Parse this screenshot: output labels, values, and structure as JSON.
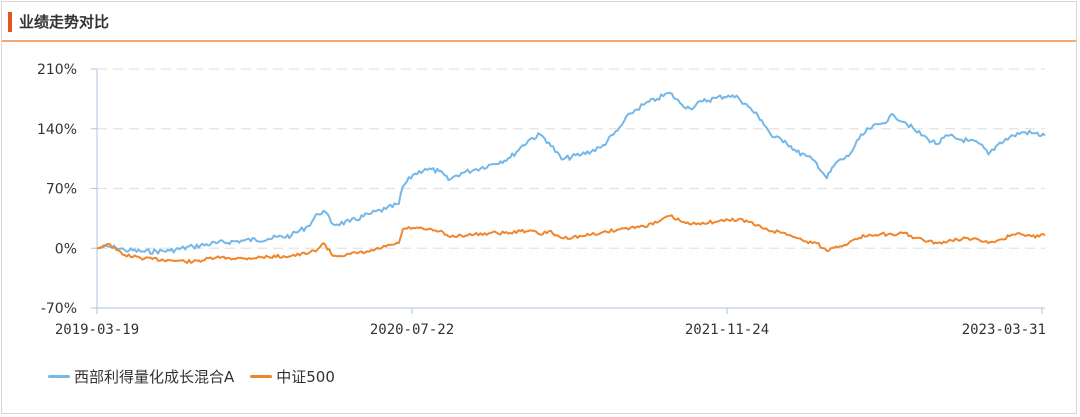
{
  "header": {
    "title": "业绩走势对比"
  },
  "colors": {
    "fund": "#75b8e8",
    "index": "#f0862c",
    "accent": "#e3551f"
  },
  "chart_data": {
    "type": "line",
    "title": "",
    "xlabel": "",
    "ylabel": "",
    "ylim": [
      -70,
      210
    ],
    "yticks": [
      -70,
      0,
      70,
      140,
      210
    ],
    "ytick_labels": [
      "-70%",
      "0%",
      "70%",
      "140%",
      "210%"
    ],
    "xticks": [
      "2019-03-19",
      "2020-07-22",
      "2021-11-24",
      "2023-03-31"
    ],
    "x_start": "2019-03-19",
    "x_end": "2023-03-31",
    "grid": true,
    "legend": "bottom-left",
    "series": [
      {
        "name": "西部利得量化成长混合A",
        "color": "#75b8e8",
        "points": [
          [
            "2019-03-19",
            0
          ],
          [
            "2019-04-05",
            2
          ],
          [
            "2019-05-01",
            -2
          ],
          [
            "2019-06-01",
            -4
          ],
          [
            "2019-07-10",
            -3
          ],
          [
            "2019-08-15",
            2
          ],
          [
            "2019-09-20",
            6
          ],
          [
            "2019-11-01",
            9
          ],
          [
            "2019-12-10",
            11
          ],
          [
            "2020-01-15",
            15
          ],
          [
            "2020-02-10",
            26
          ],
          [
            "2020-02-25",
            40
          ],
          [
            "2020-03-05",
            44
          ],
          [
            "2020-03-20",
            28
          ],
          [
            "2020-04-15",
            31
          ],
          [
            "2020-05-15",
            40
          ],
          [
            "2020-06-10",
            46
          ],
          [
            "2020-06-30",
            52
          ],
          [
            "2020-07-06",
            72
          ],
          [
            "2020-07-22",
            86
          ],
          [
            "2020-08-10",
            93
          ],
          [
            "2020-09-01",
            90
          ],
          [
            "2020-09-15",
            80
          ],
          [
            "2020-10-05",
            88
          ],
          [
            "2020-10-25",
            92
          ],
          [
            "2020-11-20",
            98
          ],
          [
            "2020-12-20",
            106
          ],
          [
            "2021-01-05",
            118
          ],
          [
            "2021-01-20",
            128
          ],
          [
            "2021-02-05",
            133
          ],
          [
            "2021-02-18",
            124
          ],
          [
            "2021-03-10",
            104
          ],
          [
            "2021-04-10",
            110
          ],
          [
            "2021-05-10",
            118
          ],
          [
            "2021-06-05",
            138
          ],
          [
            "2021-06-25",
            158
          ],
          [
            "2021-07-15",
            168
          ],
          [
            "2021-08-05",
            175
          ],
          [
            "2021-08-25",
            182
          ],
          [
            "2021-09-10",
            170
          ],
          [
            "2021-09-25",
            164
          ],
          [
            "2021-10-15",
            172
          ],
          [
            "2021-11-05",
            176
          ],
          [
            "2021-11-24",
            179
          ],
          [
            "2021-12-10",
            176
          ],
          [
            "2021-12-25",
            166
          ],
          [
            "2022-01-15",
            150
          ],
          [
            "2022-02-01",
            130
          ],
          [
            "2022-02-20",
            126
          ],
          [
            "2022-03-10",
            113
          ],
          [
            "2022-03-25",
            108
          ],
          [
            "2022-04-10",
            100
          ],
          [
            "2022-04-26",
            82
          ],
          [
            "2022-05-10",
            100
          ],
          [
            "2022-05-30",
            108
          ],
          [
            "2022-06-15",
            128
          ],
          [
            "2022-07-01",
            140
          ],
          [
            "2022-07-20",
            146
          ],
          [
            "2022-08-08",
            156
          ],
          [
            "2022-08-25",
            148
          ],
          [
            "2022-09-10",
            138
          ],
          [
            "2022-09-30",
            128
          ],
          [
            "2022-10-15",
            122
          ],
          [
            "2022-10-31",
            132
          ],
          [
            "2022-11-15",
            128
          ],
          [
            "2022-12-01",
            126
          ],
          [
            "2022-12-20",
            122
          ],
          [
            "2023-01-02",
            110
          ],
          [
            "2023-01-20",
            124
          ],
          [
            "2023-02-10",
            132
          ],
          [
            "2023-02-25",
            136
          ],
          [
            "2023-03-10",
            135
          ],
          [
            "2023-03-31",
            132
          ]
        ]
      },
      {
        "name": "中证500",
        "color": "#f0862c",
        "points": [
          [
            "2019-03-19",
            0
          ],
          [
            "2019-04-05",
            5
          ],
          [
            "2019-05-01",
            -8
          ],
          [
            "2019-06-01",
            -12
          ],
          [
            "2019-07-10",
            -14
          ],
          [
            "2019-08-15",
            -16
          ],
          [
            "2019-09-20",
            -11
          ],
          [
            "2019-11-01",
            -12
          ],
          [
            "2019-12-10",
            -10
          ],
          [
            "2020-01-15",
            -9
          ],
          [
            "2020-02-10",
            -6
          ],
          [
            "2020-02-25",
            -1
          ],
          [
            "2020-03-05",
            6
          ],
          [
            "2020-03-20",
            -9
          ],
          [
            "2020-04-15",
            -7
          ],
          [
            "2020-05-15",
            -4
          ],
          [
            "2020-06-10",
            2
          ],
          [
            "2020-06-30",
            6
          ],
          [
            "2020-07-06",
            22
          ],
          [
            "2020-07-22",
            24
          ],
          [
            "2020-08-10",
            22
          ],
          [
            "2020-09-01",
            20
          ],
          [
            "2020-09-15",
            14
          ],
          [
            "2020-10-05",
            15
          ],
          [
            "2020-10-25",
            16
          ],
          [
            "2020-11-20",
            18
          ],
          [
            "2020-12-20",
            18
          ],
          [
            "2021-01-05",
            20
          ],
          [
            "2021-01-20",
            21
          ],
          [
            "2021-02-05",
            16
          ],
          [
            "2021-02-18",
            20
          ],
          [
            "2021-03-10",
            12
          ],
          [
            "2021-04-10",
            14
          ],
          [
            "2021-05-10",
            18
          ],
          [
            "2021-06-05",
            22
          ],
          [
            "2021-06-25",
            24
          ],
          [
            "2021-07-15",
            26
          ],
          [
            "2021-08-05",
            30
          ],
          [
            "2021-08-25",
            38
          ],
          [
            "2021-09-10",
            32
          ],
          [
            "2021-09-25",
            28
          ],
          [
            "2021-10-15",
            30
          ],
          [
            "2021-11-05",
            31
          ],
          [
            "2021-11-24",
            33
          ],
          [
            "2021-12-10",
            34
          ],
          [
            "2021-12-25",
            31
          ],
          [
            "2022-01-15",
            24
          ],
          [
            "2022-02-01",
            20
          ],
          [
            "2022-02-20",
            18
          ],
          [
            "2022-03-10",
            12
          ],
          [
            "2022-03-25",
            8
          ],
          [
            "2022-04-10",
            6
          ],
          [
            "2022-04-26",
            -3
          ],
          [
            "2022-05-10",
            2
          ],
          [
            "2022-05-30",
            6
          ],
          [
            "2022-06-15",
            12
          ],
          [
            "2022-07-01",
            16
          ],
          [
            "2022-07-20",
            17
          ],
          [
            "2022-08-08",
            15
          ],
          [
            "2022-08-25",
            18
          ],
          [
            "2022-09-10",
            12
          ],
          [
            "2022-09-30",
            8
          ],
          [
            "2022-10-15",
            6
          ],
          [
            "2022-10-31",
            8
          ],
          [
            "2022-11-15",
            10
          ],
          [
            "2022-12-01",
            12
          ],
          [
            "2022-12-20",
            9
          ],
          [
            "2023-01-02",
            6
          ],
          [
            "2023-01-20",
            10
          ],
          [
            "2023-02-10",
            16
          ],
          [
            "2023-02-25",
            16
          ],
          [
            "2023-03-10",
            14
          ],
          [
            "2023-03-31",
            15
          ]
        ]
      }
    ]
  }
}
